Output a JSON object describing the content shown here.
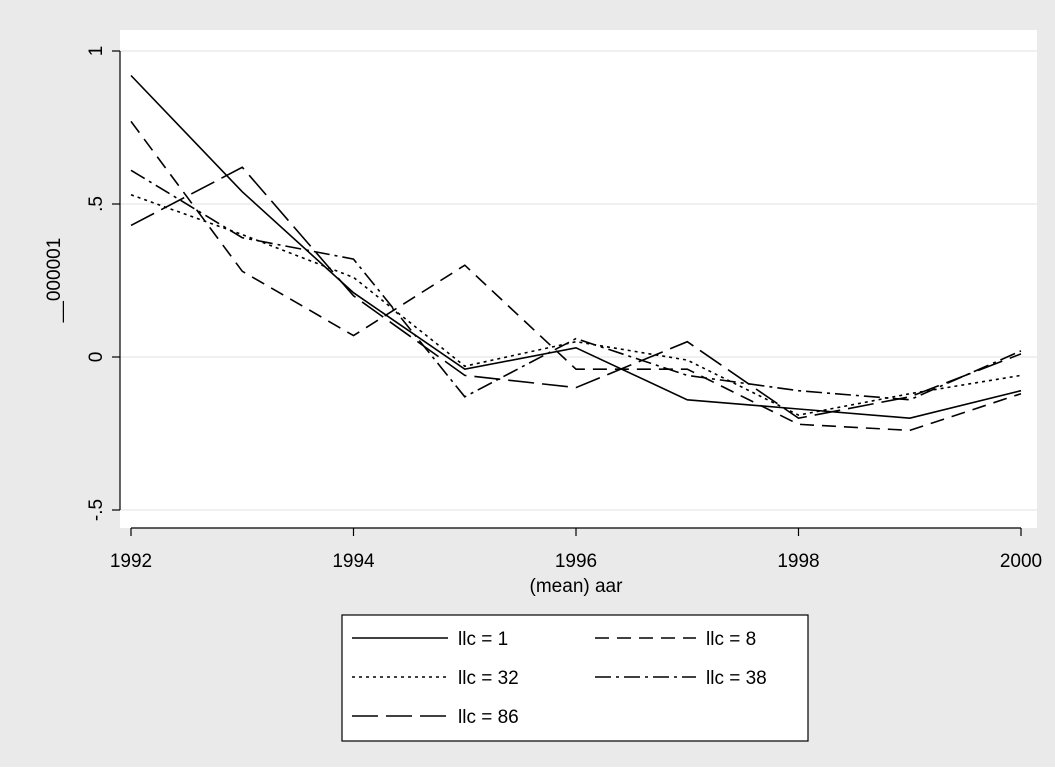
{
  "chart_data": {
    "type": "line",
    "xlabel": "(mean) aar",
    "ylabel": "__000001",
    "xlim": [
      1992,
      2000
    ],
    "ylim": [
      -0.5,
      1.0
    ],
    "x_ticks": [
      {
        "value": 1992,
        "label": "1992"
      },
      {
        "value": 1994,
        "label": "1994"
      },
      {
        "value": 1996,
        "label": "1996"
      },
      {
        "value": 1998,
        "label": "1998"
      },
      {
        "value": 2000,
        "label": "2000"
      }
    ],
    "y_ticks": [
      {
        "value": -0.5,
        "label": "-.5"
      },
      {
        "value": 0,
        "label": "0"
      },
      {
        "value": 0.5,
        "label": ".5"
      },
      {
        "value": 1,
        "label": "1"
      }
    ],
    "grid": "horizontal",
    "legend_position": "bottom",
    "x": [
      1992,
      1993,
      1994,
      1995,
      1996,
      1997,
      1998,
      1999,
      2000
    ],
    "series": [
      {
        "name": "llc = 1",
        "dash": "solid",
        "values": [
          0.92,
          0.54,
          0.21,
          -0.04,
          0.03,
          -0.14,
          -0.17,
          -0.2,
          -0.11
        ]
      },
      {
        "name": "llc = 8",
        "dash": "dash",
        "values": [
          0.77,
          0.28,
          0.07,
          0.3,
          -0.04,
          -0.04,
          -0.22,
          -0.24,
          -0.12
        ]
      },
      {
        "name": "llc = 32",
        "dash": "dot",
        "values": [
          0.53,
          0.4,
          0.26,
          -0.03,
          0.05,
          -0.01,
          -0.19,
          -0.12,
          -0.06
        ]
      },
      {
        "name": "llc = 38",
        "dash": "dashdot",
        "values": [
          0.61,
          0.39,
          0.32,
          -0.13,
          0.06,
          -0.06,
          -0.11,
          -0.14,
          0.02
        ]
      },
      {
        "name": "llc = 86",
        "dash": "longdash",
        "values": [
          0.43,
          0.62,
          0.2,
          -0.06,
          -0.1,
          0.05,
          -0.2,
          -0.13,
          0.01
        ]
      }
    ],
    "colors": {
      "outer_background": "#eaeaea",
      "plot_background": "#ffffff",
      "grid": "#e6e6e6",
      "line": "#000000"
    }
  }
}
